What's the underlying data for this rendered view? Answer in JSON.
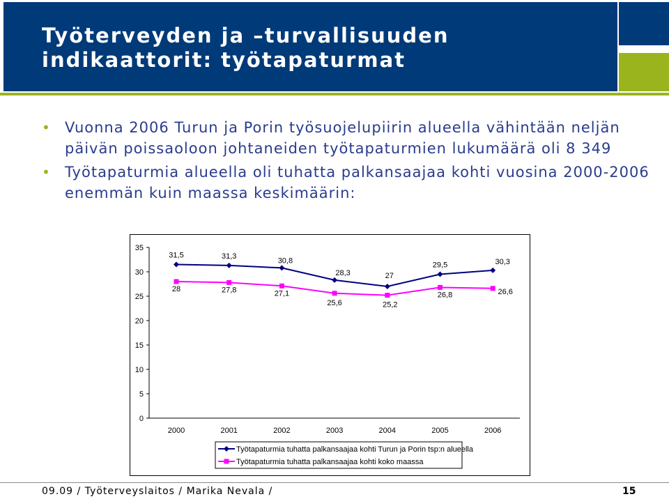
{
  "header": {
    "title_line1": "Työterveyden ja –turvallisuuden",
    "title_line2": "indikaattorit: työtapaturmat"
  },
  "bullets": [
    {
      "text": "Vuonna 2006 Turun ja Porin työsuojelupiirin alueella vähintään neljän päivän poissaoloon johtaneiden työtapaturmien lukumäärä oli 8 349"
    },
    {
      "text": "Työtapaturmia alueella oli tuhatta palkansaajaa kohti vuosina 2000-2006 enemmän kuin maassa keskimäärin:"
    }
  ],
  "footer": {
    "text": "09.09 / Työterveyslaitos / Marika Nevala /",
    "page": "15"
  },
  "colors": {
    "header_bg": "#003a78",
    "accent_green": "#9ab41e",
    "bullet_text": "#2a3c8c",
    "series_1": "#000080",
    "series_2": "#ff00ff"
  },
  "chart_data": {
    "type": "line",
    "x": [
      "2000",
      "2001",
      "2002",
      "2003",
      "2004",
      "2005",
      "2006"
    ],
    "ylim": [
      0,
      35
    ],
    "yticks": [
      "0",
      "5",
      "10",
      "15",
      "20",
      "25",
      "30",
      "35"
    ],
    "grid": false,
    "legend_position": "bottom",
    "series": [
      {
        "name": "Työtapaturmia tuhatta palkansaajaa kohti Turun ja Porin tsp:n alueella",
        "values": [
          31.5,
          31.3,
          30.8,
          28.3,
          27,
          29.5,
          30.3
        ],
        "labels": [
          "31,5",
          "31,3",
          "30,8",
          "28,3",
          "27",
          "29,5",
          "30,3"
        ],
        "color": "#000080",
        "marker": "diamond"
      },
      {
        "name": "Työtapaturmia tuhatta palkansaajaa kohti koko maassa",
        "values": [
          28,
          27.8,
          27.1,
          25.6,
          25.2,
          26.8,
          26.6
        ],
        "labels": [
          "28",
          "27,8",
          "27,1",
          "25,6",
          "25,2",
          "26,8",
          "26,6"
        ],
        "color": "#ff00ff",
        "marker": "square"
      }
    ]
  }
}
